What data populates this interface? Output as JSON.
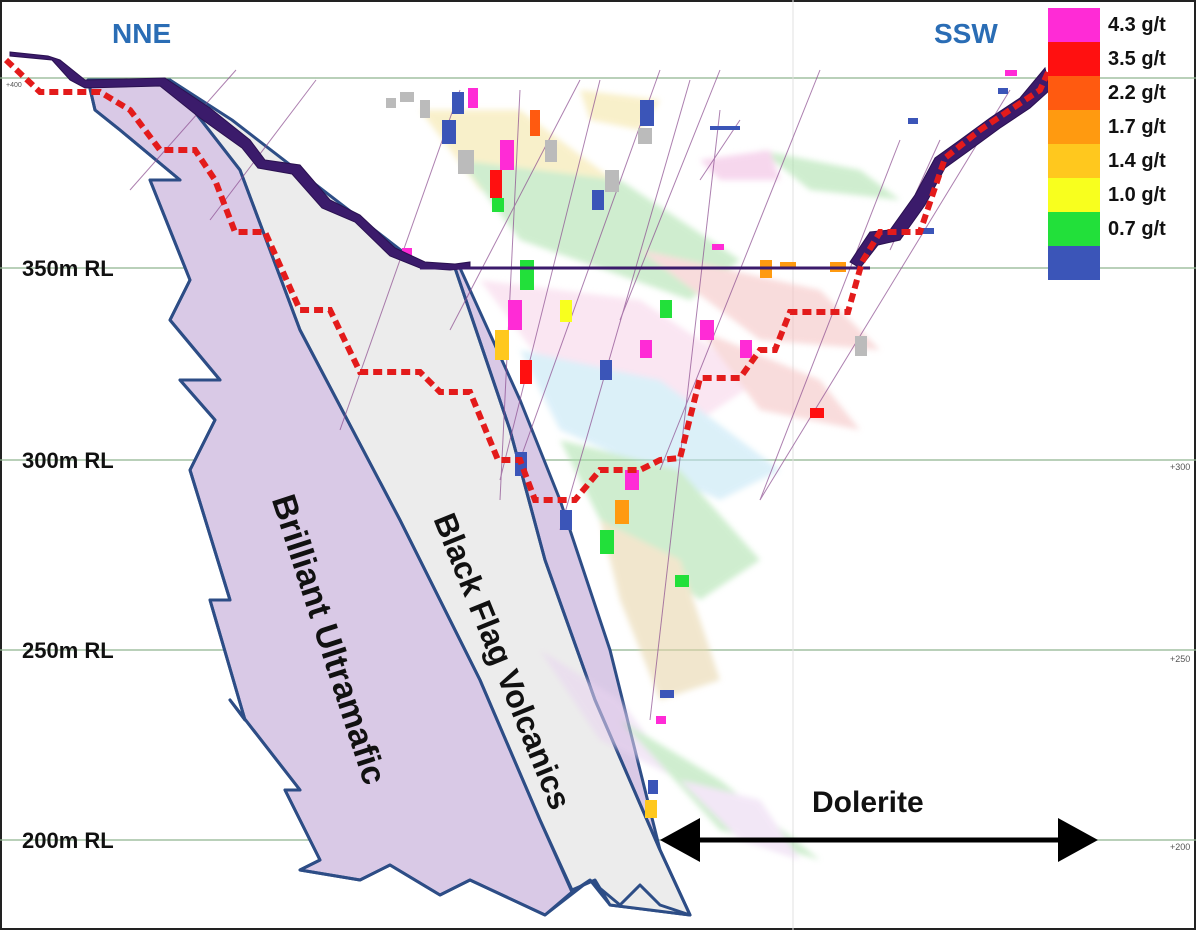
{
  "section": {
    "direction_left": "NNE",
    "direction_right": "SSW"
  },
  "rl_labels": {
    "rl_350": "350m RL",
    "rl_300": "300m RL",
    "rl_250": "250m RL",
    "rl_200": "200m RL"
  },
  "left_ticks": {
    "tick_400": "+400"
  },
  "right_ticks": {
    "tick_300": "+300",
    "tick_250": "+250",
    "tick_200": "+200"
  },
  "legend": {
    "items": [
      {
        "label": "4.3 g/t",
        "color": "#ff2bd6"
      },
      {
        "label": "3.5 g/t",
        "color": "#ff1010"
      },
      {
        "label": "2.2 g/t",
        "color": "#ff5a10"
      },
      {
        "label": "1.7 g/t",
        "color": "#ff9a10"
      },
      {
        "label": "1.4 g/t",
        "color": "#ffc81e"
      },
      {
        "label": "1.0 g/t",
        "color": "#f8ff1e"
      },
      {
        "label": "0.7 g/t",
        "color": "#22e03a"
      },
      {
        "label": "",
        "color": "#3b55b8"
      }
    ]
  },
  "lithology": {
    "unit_1": "Brilliant Ultramafic",
    "unit_2": "Black Flag Volcanics",
    "unit_3": "Dolerite"
  },
  "colors": {
    "ultramafic_fill": "#d9c9e6",
    "volcanics_fill": "#ececec",
    "contact_line": "#2d4d86",
    "pit_outline": "#e31b1b",
    "surface": "#3b1b6b",
    "label_blue": "#2a6db5"
  }
}
